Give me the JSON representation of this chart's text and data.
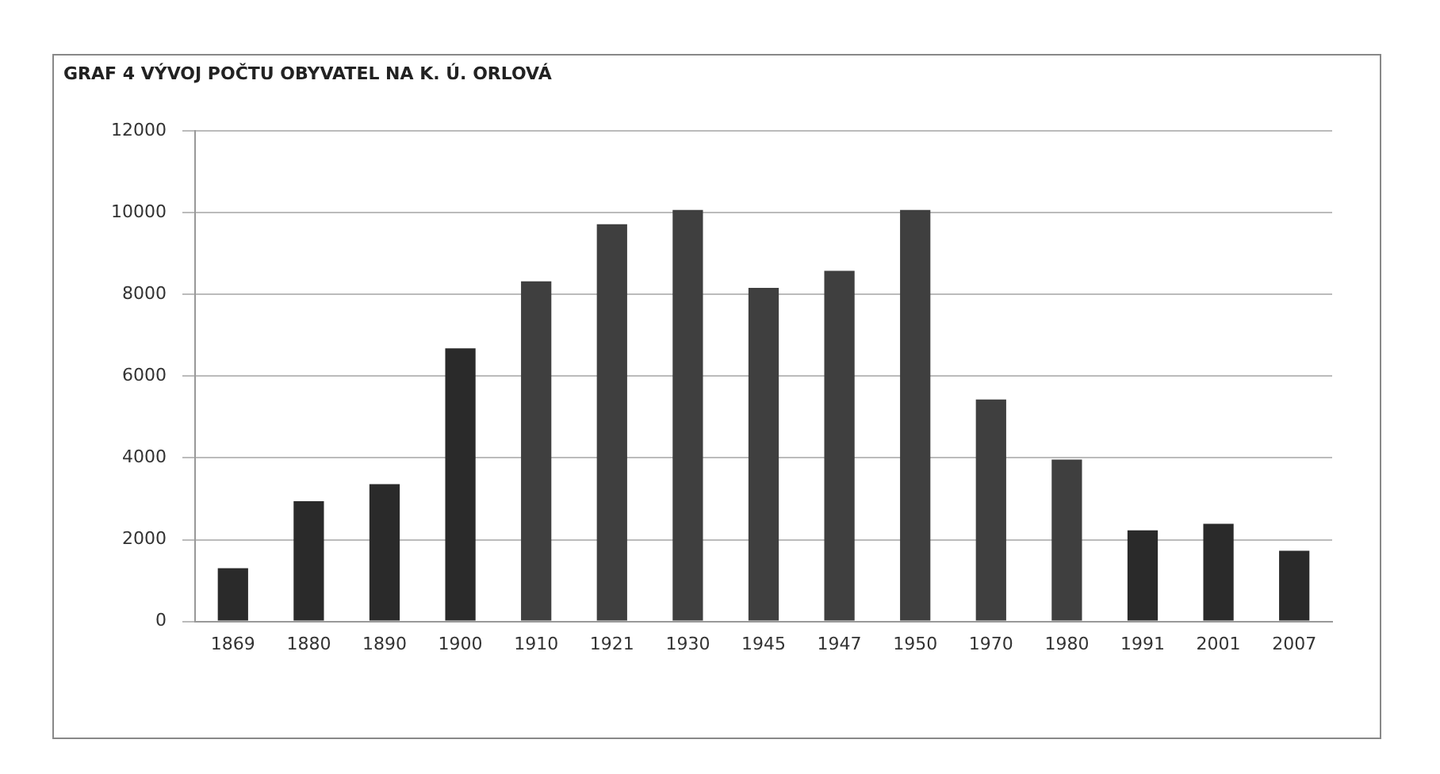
{
  "chart_data": {
    "type": "bar",
    "title": "GRAF 4 VÝVOJ POČTU OBYVATEL NA K. Ú. ORLOVÁ",
    "categories": [
      "1869",
      "1880",
      "1890",
      "1900",
      "1910",
      "1921",
      "1930",
      "1945",
      "1947",
      "1950",
      "1970",
      "1980",
      "1991",
      "2001",
      "2007"
    ],
    "values": [
      1300,
      2940,
      3360,
      6680,
      8320,
      9720,
      10070,
      8160,
      8580,
      10070,
      5430,
      3960,
      2230,
      2390,
      1730
    ],
    "colors": [
      "#2a2a2a",
      "#2a2a2a",
      "#2a2a2a",
      "#2a2a2a",
      "#3f3f3f",
      "#3f3f3f",
      "#3f3f3f",
      "#3f3f3f",
      "#3f3f3f",
      "#3f3f3f",
      "#3f3f3f",
      "#3f3f3f",
      "#2a2a2a",
      "#2a2a2a",
      "#2a2a2a"
    ],
    "ylim": [
      0,
      12000
    ],
    "yticks": [
      0,
      2000,
      4000,
      6000,
      8000,
      10000,
      12000
    ],
    "grid": "y"
  }
}
